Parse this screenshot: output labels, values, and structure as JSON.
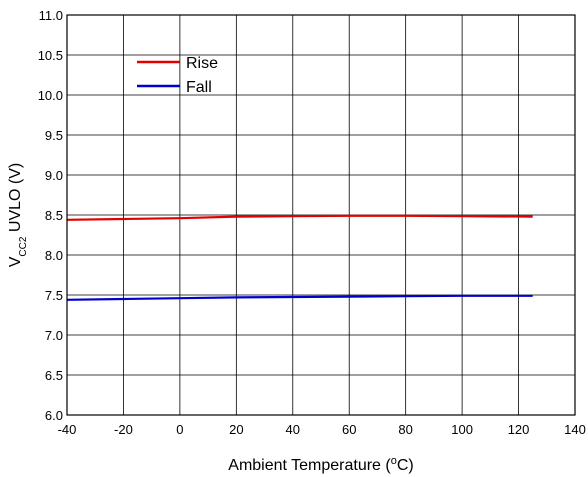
{
  "chart_data": {
    "type": "line",
    "title": "",
    "xlabel": {
      "prefix": "Ambient Temperature (",
      "superscript": "o",
      "suffix": "C)"
    },
    "ylabel": {
      "prefix": "V",
      "subscript": "CC2",
      "suffix": " UVLO (V)"
    },
    "xlim": [
      -40,
      140
    ],
    "ylim": [
      6.0,
      11.0
    ],
    "x_ticks": [
      -40,
      -20,
      0,
      20,
      40,
      60,
      80,
      100,
      120,
      140
    ],
    "x_tick_labels": [
      "-40",
      "-20",
      "0",
      "20",
      "40",
      "60",
      "80",
      "100",
      "120",
      "140"
    ],
    "y_ticks": [
      6.0,
      6.5,
      7.0,
      7.5,
      8.0,
      8.5,
      9.0,
      9.5,
      10.0,
      10.5,
      11.0
    ],
    "y_tick_labels": [
      "6.0",
      "6.5",
      "7.0",
      "7.5",
      "8.0",
      "8.5",
      "9.0",
      "9.5",
      "10.0",
      "10.5",
      "11.0"
    ],
    "grid": true,
    "legend_position": "top-left",
    "series": [
      {
        "name": "Rise",
        "color": "#e00000",
        "x": [
          -40,
          -20,
          0,
          20,
          40,
          60,
          80,
          100,
          125
        ],
        "y": [
          8.44,
          8.45,
          8.46,
          8.48,
          8.485,
          8.49,
          8.49,
          8.485,
          8.48
        ]
      },
      {
        "name": "Fall",
        "color": "#0000cc",
        "x": [
          -40,
          -20,
          0,
          20,
          40,
          60,
          80,
          100,
          125
        ],
        "y": [
          7.44,
          7.45,
          7.46,
          7.47,
          7.475,
          7.48,
          7.485,
          7.49,
          7.49
        ]
      }
    ]
  }
}
